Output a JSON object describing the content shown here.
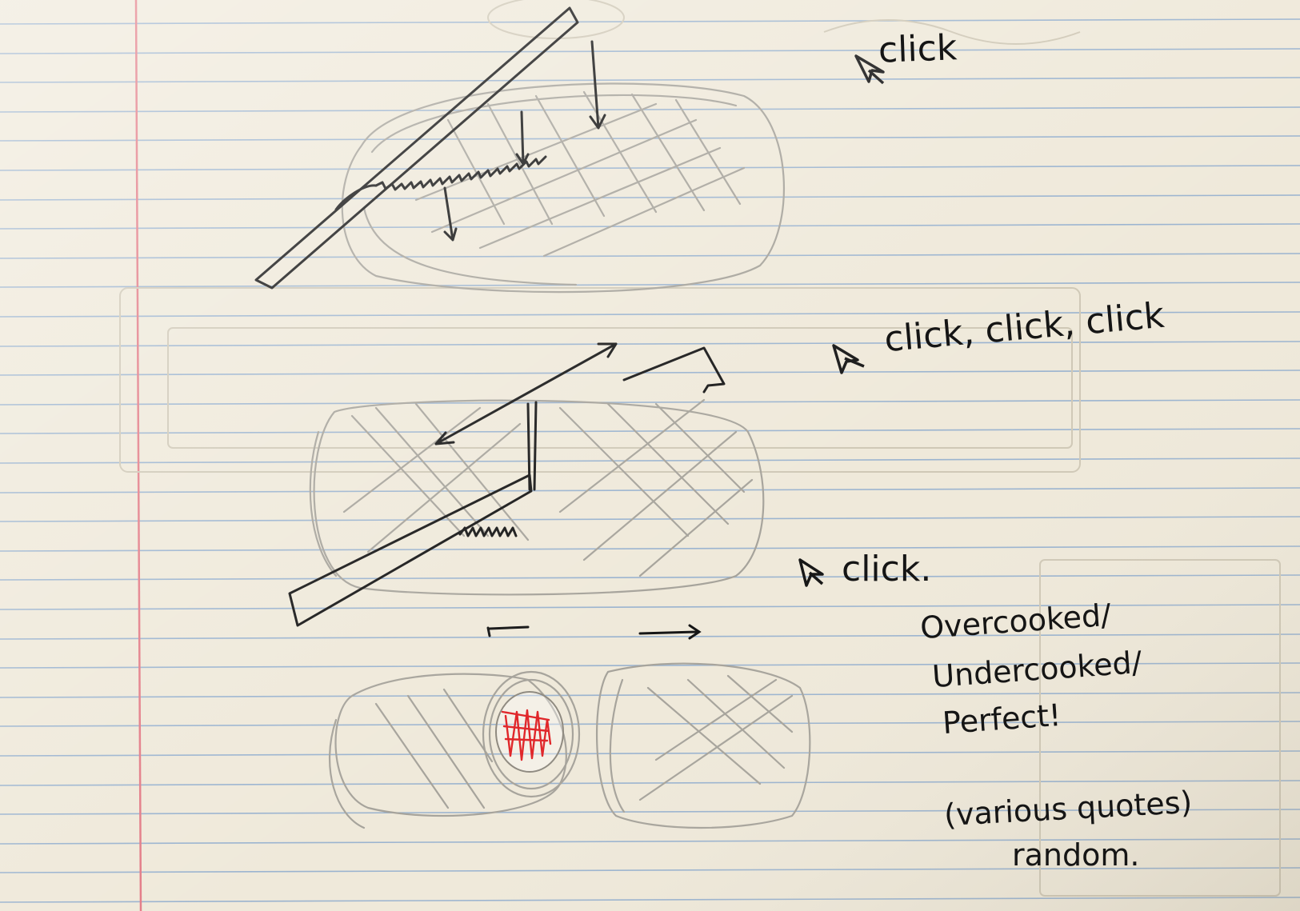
{
  "notes": {
    "click_1": "click",
    "click_2": "click, click, click",
    "click_3": "click.",
    "overcooked": "Overcooked/",
    "undercooked": "Undercooked/",
    "perfect": "Perfect!",
    "various": "(various quotes)",
    "random": "random."
  },
  "icons": {
    "cursor": "mouse-cursor-arrow",
    "knife": "serrated-knife",
    "bread": "bread-loaf"
  },
  "colors": {
    "paper": "#efe9da",
    "rule_line": "#9ab3cf",
    "margin_line": "#e37b86",
    "ink": "#151515",
    "pencil": "#a6a39b",
    "red_center": "#e0262a"
  }
}
